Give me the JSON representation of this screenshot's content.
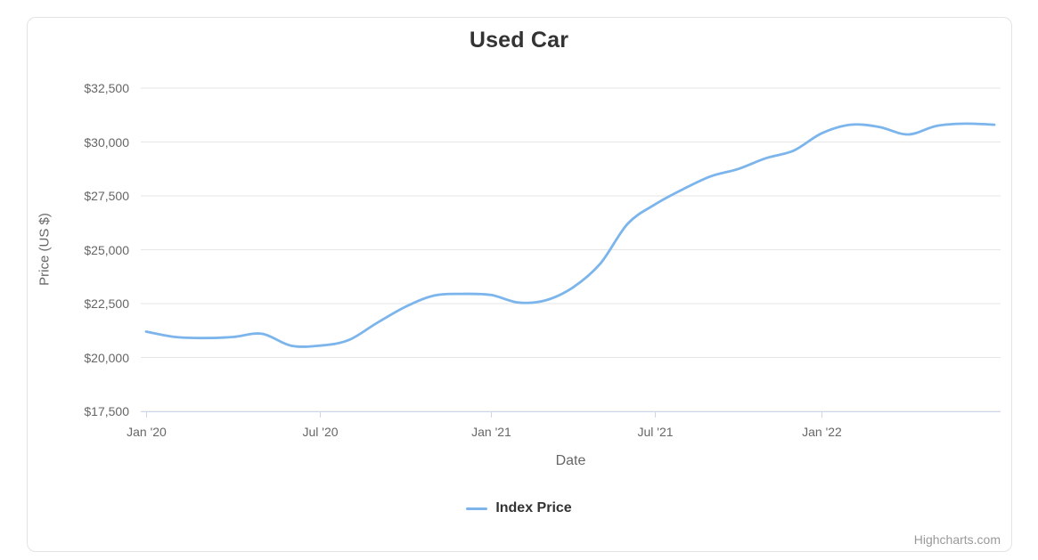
{
  "chart_data": {
    "type": "line",
    "title": "Used Car",
    "xlabel": "Date",
    "ylabel": "Price (US $)",
    "legend_position": "bottom-center",
    "grid": "horizontal-only",
    "ylim": [
      17500,
      32500
    ],
    "y_tick_step": 2500,
    "x": [
      "2020-01",
      "2020-02",
      "2020-03",
      "2020-04",
      "2020-05",
      "2020-06",
      "2020-07",
      "2020-08",
      "2020-09",
      "2020-10",
      "2020-11",
      "2020-12",
      "2021-01",
      "2021-02",
      "2021-03",
      "2021-04",
      "2021-05",
      "2021-06",
      "2021-07",
      "2021-08",
      "2021-09",
      "2021-10",
      "2021-11",
      "2021-12",
      "2022-01",
      "2022-02",
      "2022-03",
      "2022-04",
      "2022-05",
      "2022-06",
      "2022-07"
    ],
    "series": [
      {
        "name": "Index Price",
        "color": "#7cb5ec",
        "values": [
          21200,
          20950,
          20900,
          20950,
          21100,
          20550,
          20550,
          20800,
          21600,
          22350,
          22870,
          22950,
          22900,
          22550,
          22650,
          23250,
          24350,
          26200,
          27100,
          27800,
          28400,
          28750,
          29250,
          29600,
          30400,
          30800,
          30700,
          30350,
          30750,
          30850,
          30800
        ]
      }
    ],
    "y_axis": {
      "tick_labels": [
        "$32,500",
        "$30,000",
        "$27,500",
        "$25,000",
        "$22,500",
        "$20,000",
        "$17,500"
      ],
      "tick_values": [
        32500,
        30000,
        27500,
        25000,
        22500,
        20000,
        17500
      ]
    },
    "x_axis": {
      "tick_labels": [
        "Jan '20",
        "Jul '20",
        "Jan '21",
        "Jul '21",
        "Jan '22"
      ],
      "tick_month_indices": [
        0,
        6,
        12,
        18,
        24
      ]
    }
  },
  "legend": {
    "label": "Index Price"
  },
  "credits": {
    "label": "Highcharts.com"
  },
  "colors": {
    "series": "#7cb5ec",
    "grid": "#e6e6e6",
    "axis_line": "#ccd6eb",
    "labels": "#666666",
    "title": "#333333",
    "credits": "#999999"
  }
}
